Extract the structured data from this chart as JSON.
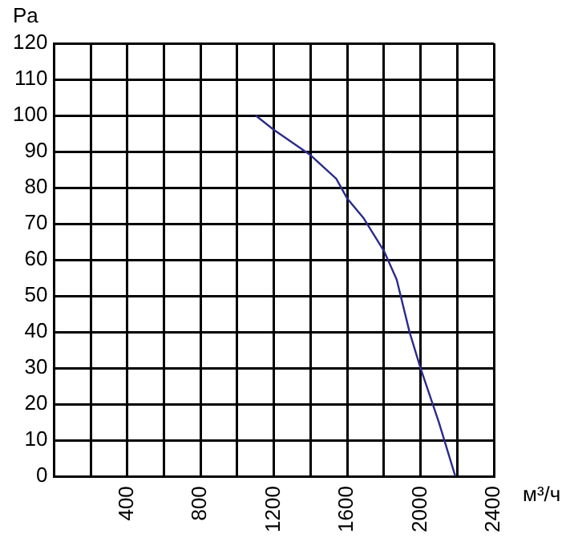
{
  "chart_data": {
    "type": "line",
    "ylabel": "Pa",
    "xlabel": "м³/ч",
    "xlim": [
      0,
      2400
    ],
    "ylim": [
      0,
      120
    ],
    "xticks": [
      {
        "value": 0,
        "label": null
      },
      {
        "value": 200,
        "label": null
      },
      400,
      {
        "value": 600,
        "label": null
      },
      800,
      {
        "value": 1000,
        "label": null
      },
      1200,
      {
        "value": 1400,
        "label": null
      },
      1600,
      {
        "value": 1800,
        "label": null
      },
      2000,
      {
        "value": 2200,
        "label": null
      },
      2400
    ],
    "yticks": [
      0,
      10,
      20,
      30,
      40,
      50,
      60,
      70,
      80,
      90,
      100,
      110,
      120
    ],
    "grid": true,
    "marker": "none",
    "line_style": "solid",
    "series": [
      {
        "color": "#2b2b8c",
        "x": [
          1100,
          1200,
          1400,
          1540,
          1600,
          1690,
          1800,
          1870,
          1940,
          2000,
          2100,
          2190
        ],
        "values": [
          100,
          96,
          89,
          82.5,
          77,
          71.5,
          62.5,
          54.5,
          40,
          30,
          15,
          0
        ]
      }
    ]
  }
}
